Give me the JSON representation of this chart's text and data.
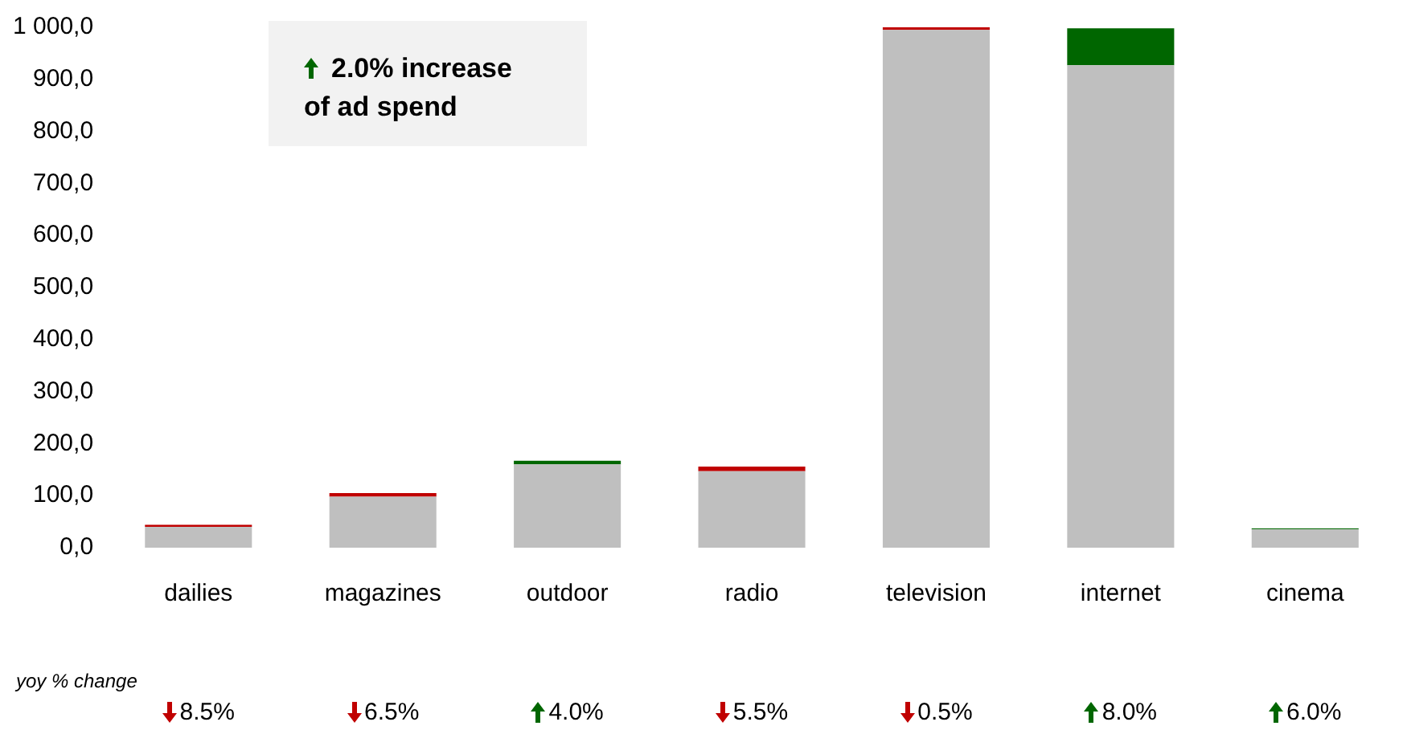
{
  "chart_data": {
    "type": "bar",
    "stacked": true,
    "categories": [
      "dailies",
      "magazines",
      "outdoor",
      "radio",
      "television",
      "internet",
      "cinema"
    ],
    "series": [
      {
        "color": "#bfbfbf",
        "values": [
          40,
          98,
          160,
          147,
          995,
          927,
          35
        ]
      },
      {
        "color": "#c00000",
        "values": [
          4,
          7,
          null,
          9,
          5,
          null,
          null
        ]
      },
      {
        "color": "#006600",
        "values": [
          null,
          null,
          7,
          null,
          null,
          71,
          2
        ]
      }
    ],
    "ylim": [
      0,
      1000
    ],
    "yticks": [
      {
        "value": 0,
        "label": "0,0"
      },
      {
        "value": 100,
        "label": "100,0"
      },
      {
        "value": 200,
        "label": "200,0"
      },
      {
        "value": 300,
        "label": "300,0"
      },
      {
        "value": 400,
        "label": "400,0"
      },
      {
        "value": 500,
        "label": "500,0"
      },
      {
        "value": 600,
        "label": "600,0"
      },
      {
        "value": 700,
        "label": "700,0"
      },
      {
        "value": 800,
        "label": "800,0"
      },
      {
        "value": 900,
        "label": "900,0"
      },
      {
        "value": 1000,
        "label": "1 000,0"
      }
    ],
    "grid": false,
    "legend": false,
    "annotations": [
      "2.0% increase of ad spend",
      "yoy % change",
      "8.5%",
      "6.5%",
      "4.0%",
      "5.5%",
      "0.5%",
      "8.0%",
      "6.0%"
    ]
  }
}
